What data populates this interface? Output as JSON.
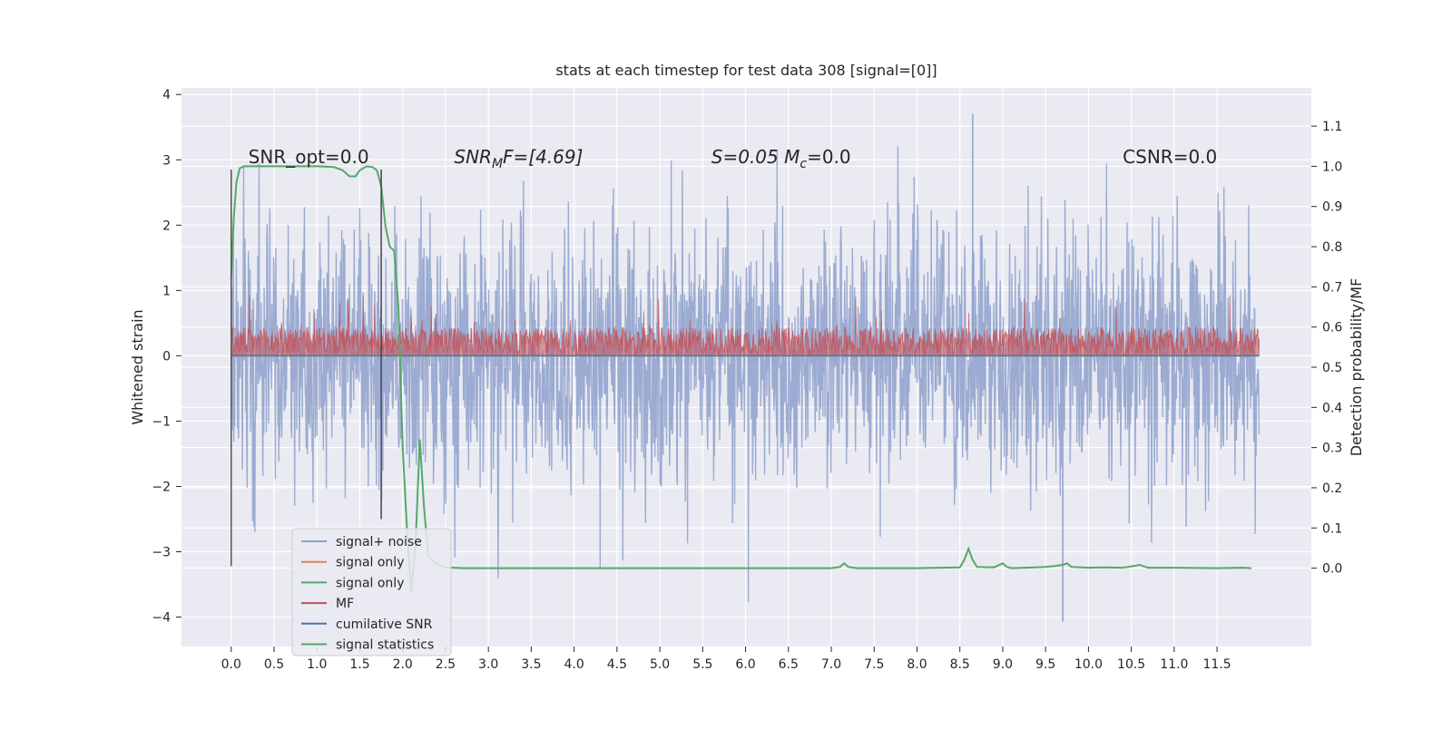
{
  "chart_data": {
    "type": "line",
    "title": "stats at each timestep for test data 308 [signal=[0]]",
    "ylabel": "Whitened strain",
    "ylabel_right": "Detection probability/MF",
    "xlabel": "",
    "xlim": [
      -0.58,
      12.6
    ],
    "ylim": [
      -4.45,
      4.1
    ],
    "ylim_right": [
      -0.195,
      1.195
    ],
    "x_ticks": [
      0.0,
      0.5,
      1.0,
      1.5,
      2.0,
      2.5,
      3.0,
      3.5,
      4.0,
      4.5,
      5.0,
      5.5,
      6.0,
      6.5,
      7.0,
      7.5,
      8.0,
      8.5,
      9.0,
      9.5,
      10.0,
      10.5,
      11.0,
      11.5
    ],
    "x_tick_labels": [
      "0.0",
      "0.5",
      "1.0",
      "1.5",
      "2.0",
      "2.5",
      "3.0",
      "3.5",
      "4.0",
      "4.5",
      "5.0",
      "5.5",
      "6.0",
      "6.5",
      "7.0",
      "7.5",
      "8.0",
      "8.5",
      "9.0",
      "9.5",
      "10.0",
      "10.5",
      "11.0",
      "11.5"
    ],
    "y_ticks": [
      -4,
      -3,
      -2,
      -1,
      0,
      1,
      2,
      3,
      4
    ],
    "y_tick_labels": [
      "−4",
      "−3",
      "−2",
      "−1",
      "0",
      "1",
      "2",
      "3",
      "4"
    ],
    "y_right_ticks": [
      0.0,
      0.1,
      0.2,
      0.3,
      0.4,
      0.5,
      0.6,
      0.7,
      0.8,
      0.9,
      1.0,
      1.1
    ],
    "y_right_tick_labels": [
      "0.0",
      "0.1",
      "0.2",
      "0.3",
      "0.4",
      "0.5",
      "0.6",
      "0.7",
      "0.8",
      "0.9",
      "1.0",
      "1.1"
    ],
    "grid": true,
    "annotations": [
      {
        "text": "SNR_opt=0.0",
        "x": 0.2,
        "y": 2.95
      },
      {
        "text": "SNR",
        "sub": "M",
        "suffix": "F=[4.69]",
        "italic": true,
        "x": 2.6,
        "y": 2.95
      },
      {
        "text": "S=0.05   M",
        "sub": "c",
        "suffix": "=0.0",
        "italic": true,
        "x": 5.6,
        "y": 2.95
      },
      {
        "text": "CSNR=0.0",
        "x": 10.4,
        "y": 2.95
      }
    ],
    "vlines": [
      {
        "x": 0.0,
        "ymin": -3.22,
        "ymax": 2.85,
        "color": "#555555"
      },
      {
        "x": 1.75,
        "ymin": -2.5,
        "ymax": 2.85,
        "color": "#444455"
      }
    ],
    "series": [
      {
        "name": "signal+ noise",
        "axis": "left",
        "color": "#8da0cb",
        "kind": "noise",
        "x_range": [
          0.0,
          11.99
        ],
        "typical_range": [
          -1.7,
          1.7
        ],
        "extremes": [
          -4.07,
          3.7
        ]
      },
      {
        "name": "signal only",
        "axis": "left",
        "color": "#dd8452",
        "values_constant": 0.0
      },
      {
        "name": "signal only",
        "axis": "left",
        "color": "#55a868",
        "values_constant": 0.0
      },
      {
        "name": "MF",
        "axis": "right",
        "color": "#c44e52",
        "kind": "band",
        "x_range": [
          0.0,
          11.99
        ],
        "typical_range": [
          0.53,
          0.6
        ],
        "peak": 0.68
      },
      {
        "name": "cumilative SNR",
        "axis": "left",
        "color": "#4c72b0",
        "values_constant": 0.0
      },
      {
        "name": "signal statistics",
        "axis": "right",
        "color": "#55a868",
        "x": [
          0.0,
          0.03,
          0.06,
          0.1,
          0.15,
          0.3,
          0.6,
          1.0,
          1.2,
          1.3,
          1.38,
          1.45,
          1.5,
          1.58,
          1.65,
          1.7,
          1.75,
          1.8,
          1.85,
          1.9,
          1.95,
          2.0,
          2.05,
          2.1,
          2.15,
          2.2,
          2.25,
          2.3,
          2.4,
          2.5,
          2.7,
          3.0,
          4.0,
          5.0,
          6.0,
          7.0,
          7.1,
          7.15,
          7.2,
          7.3,
          8.0,
          8.5,
          8.55,
          8.6,
          8.65,
          8.7,
          8.9,
          9.0,
          9.05,
          9.1,
          9.5,
          9.6,
          9.7,
          9.75,
          9.8,
          10.0,
          10.2,
          10.4,
          10.55,
          10.6,
          10.65,
          10.7,
          11.0,
          11.5,
          11.8,
          11.9
        ],
        "values": [
          0.72,
          0.87,
          0.96,
          0.995,
          1.0,
          1.0,
          1.0,
          1.0,
          0.998,
          0.99,
          0.975,
          0.975,
          0.99,
          1.0,
          0.998,
          0.99,
          0.95,
          0.85,
          0.8,
          0.79,
          0.65,
          0.3,
          0.1,
          -0.06,
          0.06,
          0.32,
          0.15,
          0.03,
          0.01,
          0.002,
          0.0,
          0.0,
          0.0,
          0.0,
          0.0,
          0.0,
          0.003,
          0.012,
          0.003,
          0.0,
          0.0,
          0.002,
          0.02,
          0.048,
          0.02,
          0.003,
          0.002,
          0.012,
          0.003,
          0.0,
          0.003,
          0.005,
          0.008,
          0.012,
          0.003,
          0.001,
          0.002,
          0.001,
          0.006,
          0.008,
          0.004,
          0.001,
          0.001,
          0.0,
          0.001,
          0.0
        ]
      }
    ],
    "legend": {
      "placement": "lower-left",
      "entries": [
        {
          "label": "signal+ noise",
          "color": "#8da0cb"
        },
        {
          "label": "signal only",
          "color": "#dd8452"
        },
        {
          "label": "signal only",
          "color": "#55a868"
        },
        {
          "label": "MF",
          "color": "#c44e52"
        },
        {
          "label": "cumilative SNR",
          "color": "#4c72b0"
        },
        {
          "label": "signal statistics",
          "color": "#55a868"
        }
      ]
    },
    "colors": {
      "background": "#eaeaf2",
      "grid": "#ffffff",
      "text": "#262626"
    }
  }
}
